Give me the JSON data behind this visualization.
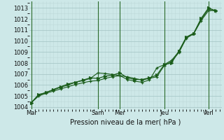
{
  "xlabel": "Pression niveau de la mer( hPa )",
  "background_color": "#cde8e8",
  "grid_major_color": "#a8c8c8",
  "grid_minor_color": "#bdd8d8",
  "line_color": "#1a5c1a",
  "vline_color": "#2a6a2a",
  "ylim": [
    1003.8,
    1013.6
  ],
  "xlim": [
    -0.3,
    25.8
  ],
  "yticks": [
    1004,
    1005,
    1006,
    1007,
    1008,
    1009,
    1010,
    1011,
    1012,
    1013
  ],
  "day_labels": [
    "Mar",
    "Sam",
    "Mer",
    "Jeu",
    "Ven"
  ],
  "day_positions": [
    0.0,
    9.0,
    12.0,
    18.0,
    24.0
  ],
  "series1_x": [
    0,
    1,
    2,
    3,
    4,
    5,
    6,
    7,
    8,
    9,
    10,
    11,
    12,
    13,
    14,
    15,
    16,
    17,
    18,
    19,
    20,
    21,
    22,
    23,
    24,
    25
  ],
  "series1_y": [
    1004.4,
    1005.0,
    1005.25,
    1005.45,
    1005.65,
    1005.85,
    1006.05,
    1006.2,
    1006.35,
    1006.4,
    1006.6,
    1006.75,
    1006.85,
    1006.75,
    1006.6,
    1006.45,
    1006.6,
    1006.75,
    1007.75,
    1008.15,
    1008.95,
    1010.25,
    1010.65,
    1011.85,
    1012.75,
    1012.8
  ],
  "series2_x": [
    0,
    1,
    2,
    3,
    4,
    5,
    6,
    7,
    8,
    9,
    10,
    11,
    12,
    13,
    14,
    15,
    16,
    17,
    18,
    19,
    20,
    21,
    22,
    23,
    24,
    25
  ],
  "series2_y": [
    1004.4,
    1005.05,
    1005.35,
    1005.55,
    1005.8,
    1006.0,
    1006.25,
    1006.4,
    1006.6,
    1007.1,
    1007.05,
    1006.95,
    1006.85,
    1006.5,
    1006.35,
    1006.25,
    1006.45,
    1007.55,
    1007.85,
    1008.25,
    1009.05,
    1010.35,
    1010.7,
    1011.95,
    1012.9,
    1012.7
  ],
  "series3_x": [
    0,
    1,
    2,
    3,
    4,
    5,
    6,
    7,
    8,
    9,
    10,
    11,
    12,
    13,
    14,
    15,
    16,
    17,
    18,
    19,
    20,
    21,
    22,
    23,
    24,
    25
  ],
  "series3_y": [
    1004.4,
    1005.15,
    1005.3,
    1005.6,
    1005.85,
    1006.1,
    1006.25,
    1006.45,
    1006.65,
    1006.6,
    1006.8,
    1006.9,
    1007.1,
    1006.65,
    1006.5,
    1006.5,
    1006.65,
    1006.9,
    1007.85,
    1008.0,
    1009.1,
    1010.35,
    1010.7,
    1012.05,
    1013.0,
    1012.75
  ]
}
